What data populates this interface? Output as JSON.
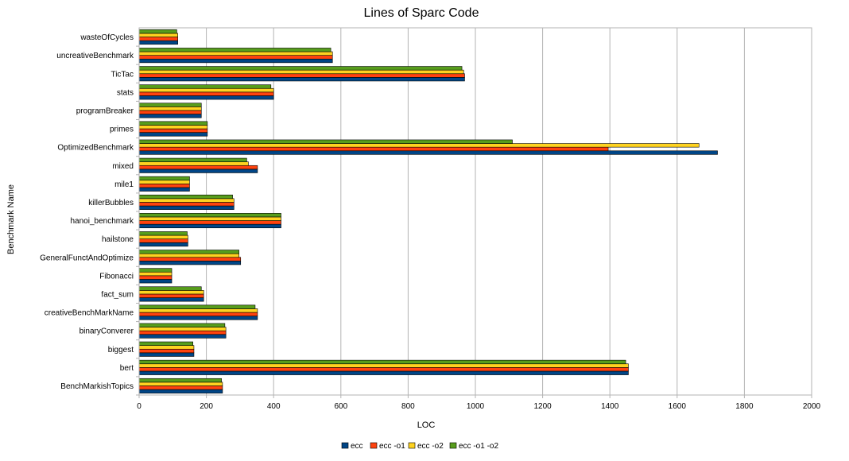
{
  "chart_data": {
    "type": "bar",
    "orientation": "horizontal",
    "title": "Lines of Sparc Code",
    "xlabel": "LOC",
    "ylabel": "Benchmark Name",
    "xlim": [
      0,
      2000
    ],
    "xticks": [
      0,
      200,
      400,
      600,
      800,
      1000,
      1200,
      1400,
      1600,
      1800,
      2000
    ],
    "grid": "vertical",
    "legend_position": "bottom",
    "categories": [
      "BenchMarkishTopics",
      "bert",
      "biggest",
      "binaryConverer",
      "creativeBenchMarkName",
      "fact_sum",
      "Fibonacci",
      "GeneralFunctAndOptimize",
      "hailstone",
      "hanoi_benchmark",
      "killerBubbles",
      "mile1",
      "mixed",
      "OptimizedBenchmark",
      "primes",
      "programBreaker",
      "stats",
      "TicTac",
      "uncreativeBenchmark",
      "wasteOfCycles"
    ],
    "series": [
      {
        "name": "ecc",
        "color": "#004586",
        "values": [
          248,
          1455,
          163,
          258,
          352,
          192,
          97,
          302,
          145,
          422,
          282,
          150,
          352,
          1720,
          203,
          185,
          400,
          968,
          575,
          115
        ]
      },
      {
        "name": "ecc -o1",
        "color": "#ff420e",
        "values": [
          248,
          1455,
          163,
          258,
          352,
          192,
          97,
          302,
          145,
          422,
          282,
          150,
          352,
          1395,
          203,
          185,
          400,
          968,
          575,
          115
        ]
      },
      {
        "name": "ecc -o2",
        "color": "#ffd320",
        "values": [
          248,
          1455,
          163,
          258,
          352,
          192,
          97,
          297,
          145,
          422,
          282,
          150,
          325,
          1665,
          203,
          185,
          400,
          965,
          575,
          115
        ]
      },
      {
        "name": "ecc -o1 -o2",
        "color": "#579d1c",
        "values": [
          245,
          1447,
          160,
          255,
          345,
          185,
          97,
          297,
          143,
          422,
          278,
          150,
          320,
          1110,
          203,
          185,
          392,
          960,
          570,
          112
        ]
      }
    ]
  }
}
